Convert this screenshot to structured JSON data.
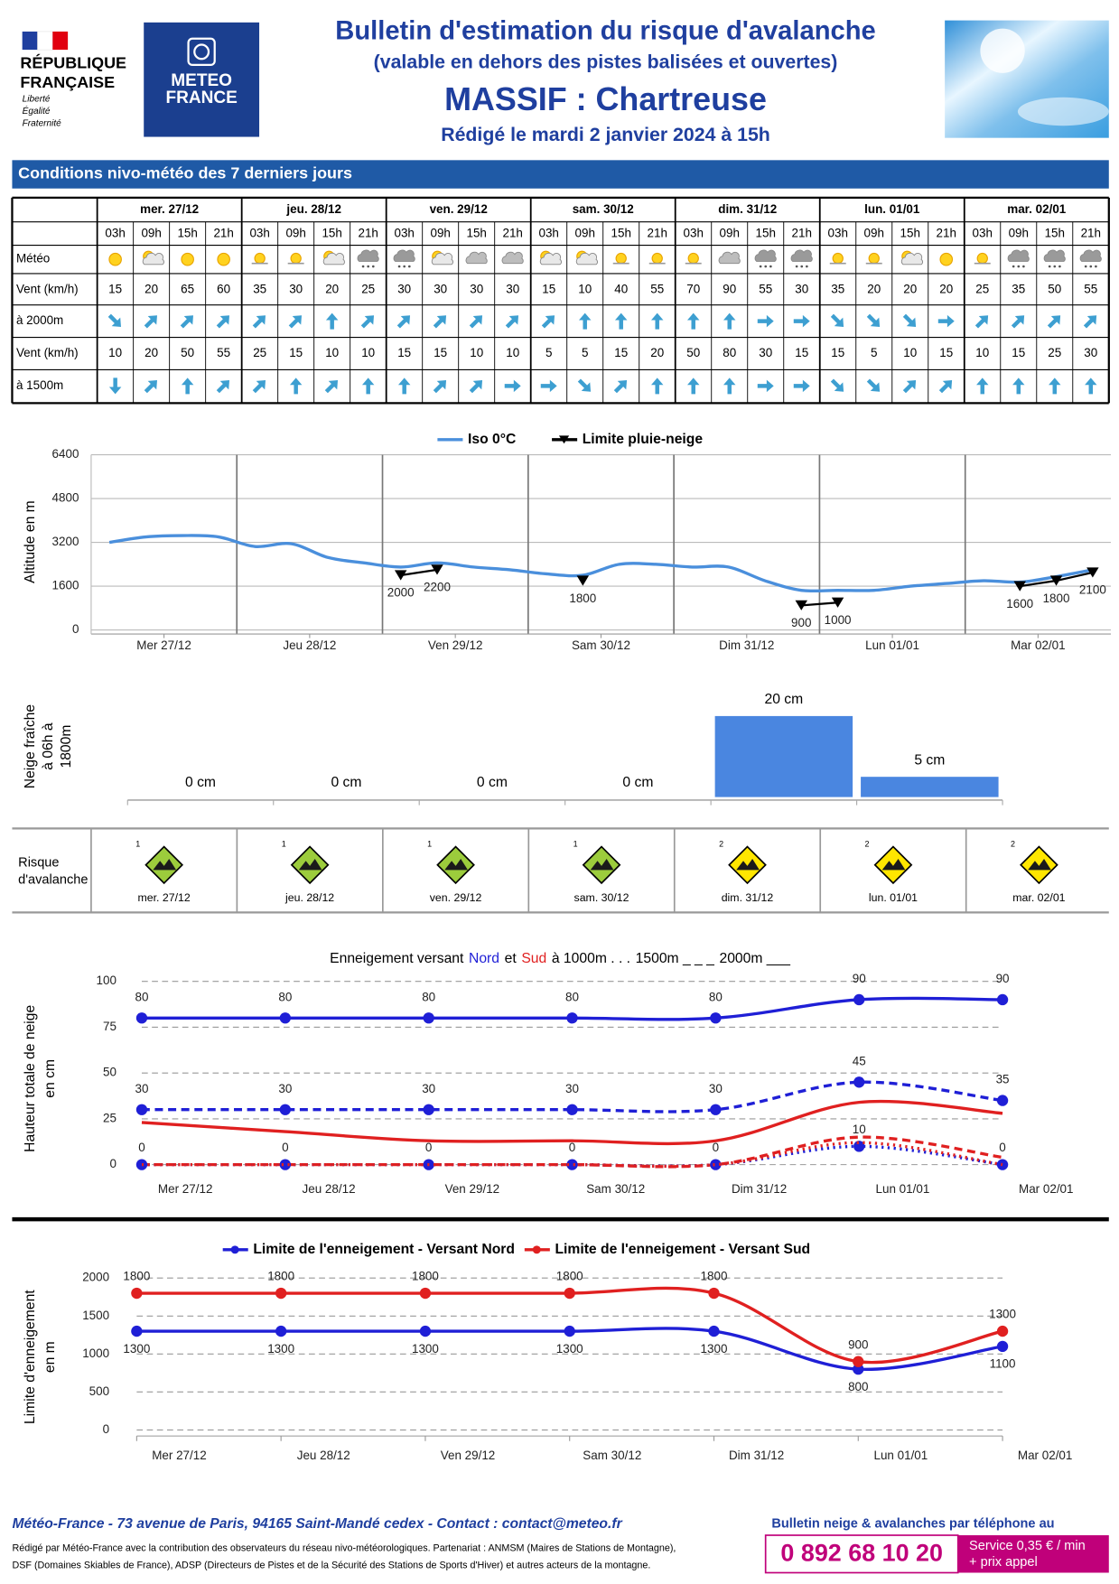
{
  "header": {
    "republique": [
      "RÉPUBLIQUE",
      "FRANÇAISE"
    ],
    "motto": [
      "Liberté",
      "Égalité",
      "Fraternité"
    ],
    "meteo_france": [
      "METEO",
      "FRANCE"
    ],
    "title": "Bulletin d'estimation du risque d'avalanche",
    "subtitle": "(valable en dehors des pistes balisées et ouvertes)",
    "massif": "MASSIF : Chartreuse",
    "date": "Rédigé le mardi 2 janvier 2024 à 15h"
  },
  "conditions": {
    "title": "Conditions nivo-météo des 7 derniers jours",
    "days": [
      "mer. 27/12",
      "jeu. 28/12",
      "ven. 29/12",
      "sam. 30/12",
      "dim. 31/12",
      "lun. 01/01",
      "mar. 02/01"
    ],
    "hours": [
      "03h",
      "09h",
      "15h",
      "21h"
    ],
    "meteo_label": "Météo",
    "wind_2000_label": [
      "Vent (km/h)",
      "à 2000m"
    ],
    "wind_1500_label": [
      "Vent (km/h)",
      "à 1500m"
    ],
    "weather": [
      "sun",
      "partly",
      "sun",
      "sun",
      "veiled",
      "veiled",
      "partly",
      "snow",
      "snow",
      "partly",
      "cloudy",
      "cloudy",
      "partly",
      "partly",
      "veiled",
      "veiled",
      "veiled",
      "cloudy",
      "snow",
      "snow",
      "veiled",
      "veiled",
      "partly",
      "sun",
      "veiled",
      "snow",
      "snow",
      "snow"
    ],
    "wind_2000": [
      15,
      20,
      65,
      60,
      35,
      30,
      20,
      25,
      30,
      30,
      30,
      30,
      15,
      10,
      40,
      55,
      70,
      90,
      55,
      30,
      35,
      20,
      20,
      20,
      25,
      35,
      50,
      55
    ],
    "dir_2000": [
      135,
      45,
      45,
      45,
      45,
      45,
      0,
      45,
      45,
      45,
      45,
      45,
      45,
      0,
      0,
      0,
      0,
      0,
      90,
      90,
      135,
      135,
      135,
      90,
      45,
      45,
      45,
      45
    ],
    "wind_1500": [
      10,
      20,
      50,
      55,
      25,
      15,
      10,
      10,
      15,
      15,
      10,
      10,
      5,
      5,
      15,
      20,
      50,
      80,
      30,
      15,
      15,
      5,
      10,
      15,
      10,
      15,
      25,
      30
    ],
    "dir_1500": [
      180,
      45,
      0,
      45,
      45,
      0,
      45,
      0,
      0,
      45,
      45,
      90,
      90,
      135,
      45,
      0,
      0,
      0,
      90,
      90,
      135,
      135,
      45,
      45,
      0,
      0,
      0,
      0
    ]
  },
  "chart_data": [
    {
      "type": "line",
      "y_label": "Altitude en m",
      "xlim": [
        0,
        7
      ],
      "xticks": [
        {
          "value": 0.5,
          "label": "Mer 27/12"
        },
        {
          "value": 1.5,
          "label": "Jeu 28/12"
        },
        {
          "value": 2.5,
          "label": "Ven 29/12"
        },
        {
          "value": 3.5,
          "label": "Sam 30/12"
        },
        {
          "value": 4.5,
          "label": "Dim 31/12"
        },
        {
          "value": 5.5,
          "label": "Lun 01/01"
        },
        {
          "value": 6.5,
          "label": "Mar 02/01"
        }
      ],
      "ylim": [
        0,
        6400
      ],
      "yticks": [
        0,
        1600,
        3200,
        4800,
        6400
      ],
      "grid": true,
      "x": [
        0.125,
        0.375,
        0.625,
        0.875,
        1.125,
        1.375,
        1.625,
        1.875,
        2.125,
        2.375,
        2.625,
        2.875,
        3.125,
        3.375,
        3.625,
        3.875,
        4.125,
        4.375,
        4.625,
        4.875,
        5.125,
        5.375,
        5.625,
        5.875,
        6.125,
        6.375,
        6.625,
        6.875
      ],
      "series": [
        {
          "name": "Iso 0°C",
          "color": "#4a8fdc",
          "smooth": true,
          "values": [
            3200,
            3400,
            3450,
            3400,
            3050,
            3150,
            2650,
            2450,
            2300,
            2450,
            2300,
            2200,
            2050,
            2000,
            2400,
            2400,
            2300,
            2300,
            1800,
            1450,
            1450,
            1450,
            1600,
            1700,
            1800,
            1750,
            1950,
            2200
          ]
        },
        {
          "name": "Limite pluie-neige",
          "color": "#000000",
          "markers": "triangle",
          "show_labels": true,
          "values": [
            null,
            null,
            null,
            null,
            null,
            null,
            null,
            null,
            2000,
            2200,
            null,
            null,
            null,
            1800,
            null,
            null,
            null,
            null,
            null,
            900,
            1000,
            null,
            null,
            null,
            null,
            1600,
            1800,
            2100
          ]
        }
      ]
    },
    {
      "type": "bar",
      "y_label": [
        "Neige fraîche",
        "à 06h à",
        "1800m"
      ],
      "ylim": [
        0,
        20
      ],
      "color": "#4a86e0",
      "values": [
        0,
        0,
        0,
        0,
        20,
        5
      ],
      "value_labels": [
        "0 cm",
        "0 cm",
        "0 cm",
        "0 cm",
        "20 cm",
        "5 cm"
      ]
    },
    {
      "type": "line",
      "title_parts": [
        {
          "text": "Enneigement versant",
          "color": "#000000"
        },
        {
          "text": "Nord",
          "color": "#1f1fd6"
        },
        {
          "text": "et",
          "color": "#000000"
        },
        {
          "text": "Sud",
          "color": "#e02020"
        },
        {
          "text": "à  1000m . . .",
          "color": "#000000"
        },
        {
          "text": "1500m _ _ _",
          "color": "#000000"
        },
        {
          "text": "2000m ___",
          "color": "#000000"
        }
      ],
      "y_label": [
        "Hauteur totale de neige",
        "en cm"
      ],
      "categories": [
        "Mer 27/12",
        "Jeu 28/12",
        "Ven 29/12",
        "Sam 30/12",
        "Dim 31/12",
        "Lun 01/01",
        "Mar 02/01"
      ],
      "ylim": [
        0,
        100
      ],
      "yticks": [
        0,
        25,
        50,
        75,
        100
      ],
      "grid": true,
      "series": [
        {
          "color": "#1f1fd6",
          "dash": "solid",
          "smooth": true,
          "markers": "circle",
          "show_labels": true,
          "values": [
            80,
            80,
            80,
            80,
            80,
            90,
            90
          ]
        },
        {
          "color": "#e02020",
          "dash": "solid",
          "smooth": true,
          "values": [
            23,
            18,
            13,
            13,
            13,
            34,
            28
          ]
        },
        {
          "color": "#1f1fd6",
          "dash": "dashed",
          "smooth": true,
          "markers": "circle",
          "show_labels": true,
          "values": [
            30,
            30,
            30,
            30,
            30,
            45,
            35
          ]
        },
        {
          "color": "#e02020",
          "dash": "dashed",
          "smooth": true,
          "values": [
            0,
            0,
            0,
            0,
            0,
            15,
            4
          ]
        },
        {
          "color": "#1f1fd6",
          "dash": "dotted",
          "smooth": true,
          "markers": "circle",
          "show_labels": true,
          "values": [
            0,
            0,
            0,
            0,
            0,
            10,
            0
          ]
        },
        {
          "color": "#e02020",
          "dash": "dotted",
          "smooth": true,
          "values": [
            0,
            0,
            0,
            0,
            0,
            12,
            0
          ]
        }
      ]
    },
    {
      "type": "line",
      "y_label": [
        "Limite d'enneigement",
        "en m"
      ],
      "categories": [
        "Mer 27/12",
        "Jeu 28/12",
        "Ven 29/12",
        "Sam 30/12",
        "Dim 31/12",
        "Lun 01/01",
        "Mar 02/01"
      ],
      "ylim": [
        0,
        2000
      ],
      "yticks": [
        0,
        500,
        1000,
        1500,
        2000
      ],
      "grid": true,
      "series": [
        {
          "name": "Limite de l'enneigement - Versant Nord",
          "color": "#1f1fd6",
          "dash": "solid",
          "smooth": true,
          "markers": "circle",
          "show_labels": true,
          "values": [
            1300,
            1300,
            1300,
            1300,
            1300,
            800,
            1100
          ]
        },
        {
          "name": "Limite de l'enneigement - Versant Sud",
          "color": "#e02020",
          "dash": "solid",
          "smooth": true,
          "markers": "circle",
          "show_labels": true,
          "values": [
            1800,
            1800,
            1800,
            1800,
            1800,
            900,
            1300
          ]
        }
      ]
    }
  ],
  "avalanche_risk": {
    "label": [
      "Risque",
      "d'avalanche"
    ],
    "levels": [
      1,
      1,
      1,
      1,
      2,
      2,
      2
    ],
    "level_colors": [
      "#9ccc3c",
      "#ffe600"
    ]
  },
  "footer": {
    "address": "Météo-France - 73 avenue de Paris, 94165 Saint-Mandé cedex - Contact : contact@meteo.fr",
    "notes": [
      "Rédigé par Météo-France avec la contribution des observateurs du réseau nivo-météorologiques. Partenariat : ANMSM (Maires de Stations de Montagne),",
      "DSF (Domaines Skiables de France), ADSP (Directeurs de Pistes et de la Sécurité des Stations de Sports d'Hiver) et autres acteurs de la montagne."
    ],
    "phone_title": "Bulletin neige & avalanches par téléphone au",
    "phone": "0 892 68 10 20",
    "price": [
      "Service 0,35 € / min",
      "+ prix appel"
    ]
  }
}
